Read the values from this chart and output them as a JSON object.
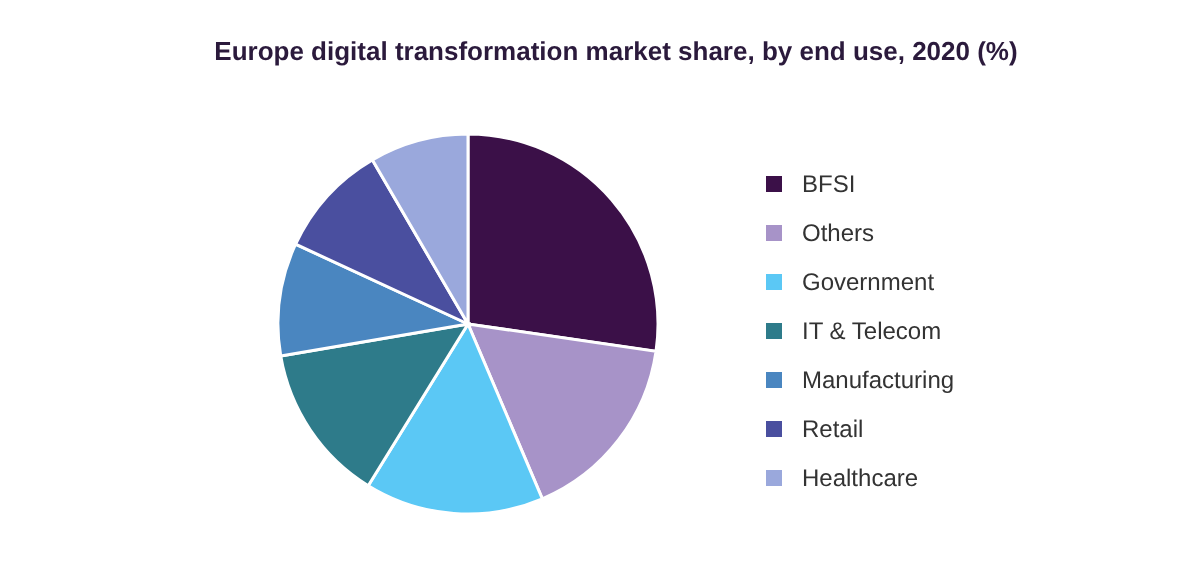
{
  "chart_data": {
    "type": "pie",
    "title": "Europe digital transformation market share, by end use, 2020 (%)",
    "categories": [
      "BFSI",
      "Others",
      "Government",
      "IT & Telecom",
      "Manufacturing",
      "Retail",
      "Healthcare"
    ],
    "values": [
      27.3,
      16.3,
      15.2,
      13.5,
      9.6,
      9.7,
      8.4
    ],
    "colors": [
      "#3b1048",
      "#a793c8",
      "#5bc8f5",
      "#2e7b8a",
      "#4a86c0",
      "#4a4f9f",
      "#9aa8dc"
    ],
    "legend": "right"
  }
}
